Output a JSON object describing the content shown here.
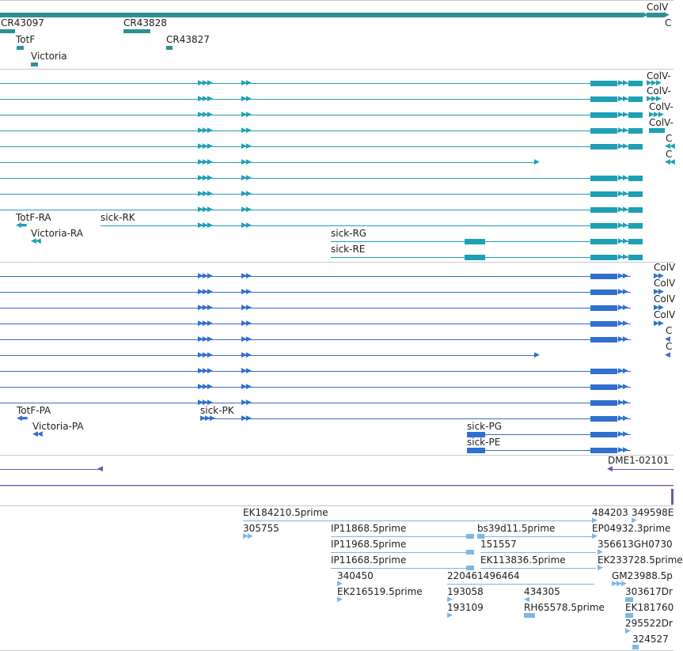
{
  "colors": {
    "gene": "#2f8f97",
    "mrna": "#1ea0b4",
    "cds": "#2f6fcf",
    "ncrna": "#7a52a8",
    "est": "#7ab8e6",
    "divider": "#c8c8c8",
    "text": "#202020"
  },
  "tracks": {
    "genes": {
      "labels": [
        "CR43097",
        "TotF",
        "Victoria",
        "CR43828",
        "CR43827",
        "ColV",
        "C"
      ]
    },
    "transcripts": {
      "labels": [
        "TotF-RA",
        "Victoria-RA",
        "sick-RK",
        "sick-RG",
        "sick-RE",
        "ColV-",
        "ColV-",
        "ColV-",
        "ColV-",
        "C",
        "C"
      ]
    },
    "proteins": {
      "labels": [
        "TotF-PA",
        "Victoria-PA",
        "sick-PK",
        "sick-PG",
        "sick-PE",
        "ColV",
        "ColV",
        "ColV",
        "ColV",
        "C",
        "C"
      ]
    },
    "ncrna": {
      "labels": [
        "DME1-02101"
      ]
    },
    "ests": {
      "labels": [
        "EK184210.5prime",
        "305755",
        "484203",
        "349598E",
        "IP11868.5prime",
        "bs39d11.5prime",
        "EP04932.3prime",
        "IP11968.5prime",
        "151557",
        "356613GH0730",
        "IP11668.5prime",
        "EK113836.5prime",
        "EK233728.5prime",
        "340450",
        "220461496464",
        "GM23988.5p",
        "EK216519.5prime",
        "193058",
        "434305",
        "303617Dr",
        "193109",
        "RH65578.5prime",
        "EK181760",
        "295522Dr",
        "324527"
      ]
    }
  }
}
